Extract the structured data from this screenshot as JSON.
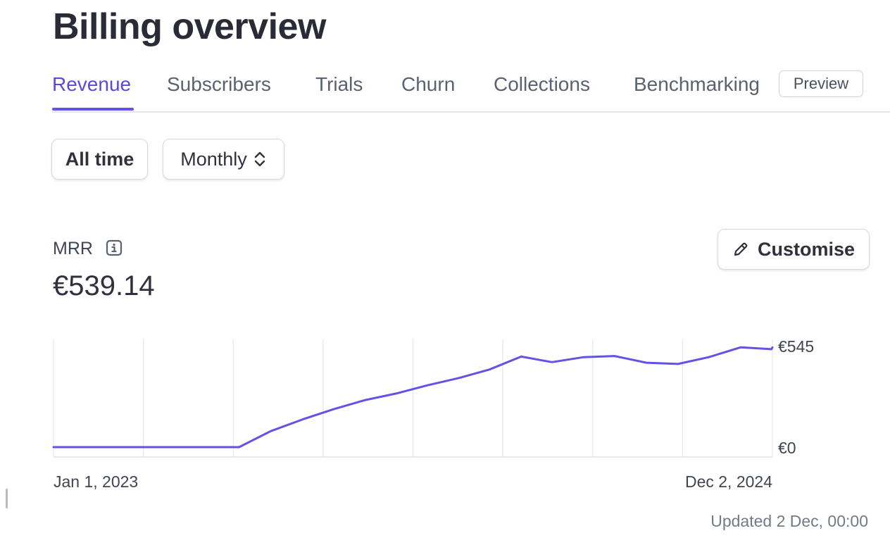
{
  "page": {
    "title": "Billing overview"
  },
  "tabs": [
    {
      "label": "Revenue",
      "active": true
    },
    {
      "label": "Subscribers",
      "active": false
    },
    {
      "label": "Trials",
      "active": false
    },
    {
      "label": "Churn",
      "active": false
    },
    {
      "label": "Collections",
      "active": false
    },
    {
      "label": "Benchmarking",
      "active": false,
      "badge": "Preview"
    }
  ],
  "filters": {
    "range": "All time",
    "interval": "Monthly",
    "interval_icon": "chevron-up-down-icon"
  },
  "metric": {
    "label": "MRR",
    "info_icon": "info-icon",
    "value": "€539.14",
    "customise_label": "Customise",
    "customise_icon": "pencil-icon"
  },
  "chart_data": {
    "type": "line",
    "x_start_label": "Jan 1, 2023",
    "x_end_label": "Dec 2, 2024",
    "y_tick_labels": [
      "€0",
      "€545"
    ],
    "ylim": [
      0,
      545
    ],
    "grid": "vertical",
    "color": "#6352e6",
    "series": [
      {
        "x": [
          "2023-01-01",
          "2023-02-01",
          "2023-03-01",
          "2023-04-01",
          "2023-05-01",
          "2023-06-01",
          "2023-07-01",
          "2023-08-01",
          "2023-09-01",
          "2023-10-01",
          "2023-11-01",
          "2023-12-01",
          "2024-01-01",
          "2024-02-01",
          "2024-03-01",
          "2024-04-01",
          "2024-05-01",
          "2024-06-01",
          "2024-07-01",
          "2024-08-01",
          "2024-09-01",
          "2024-10-01",
          "2024-11-01",
          "2024-12-01",
          "2024-12-02"
        ],
        "values": [
          0,
          0,
          0,
          0,
          0,
          0,
          0,
          87,
          150,
          205,
          255,
          290,
          335,
          375,
          420,
          490,
          460,
          487,
          493,
          457,
          450,
          487,
          540,
          530,
          539.14
        ]
      }
    ]
  },
  "footer": {
    "updated": "Updated 2 Dec, 00:00"
  }
}
